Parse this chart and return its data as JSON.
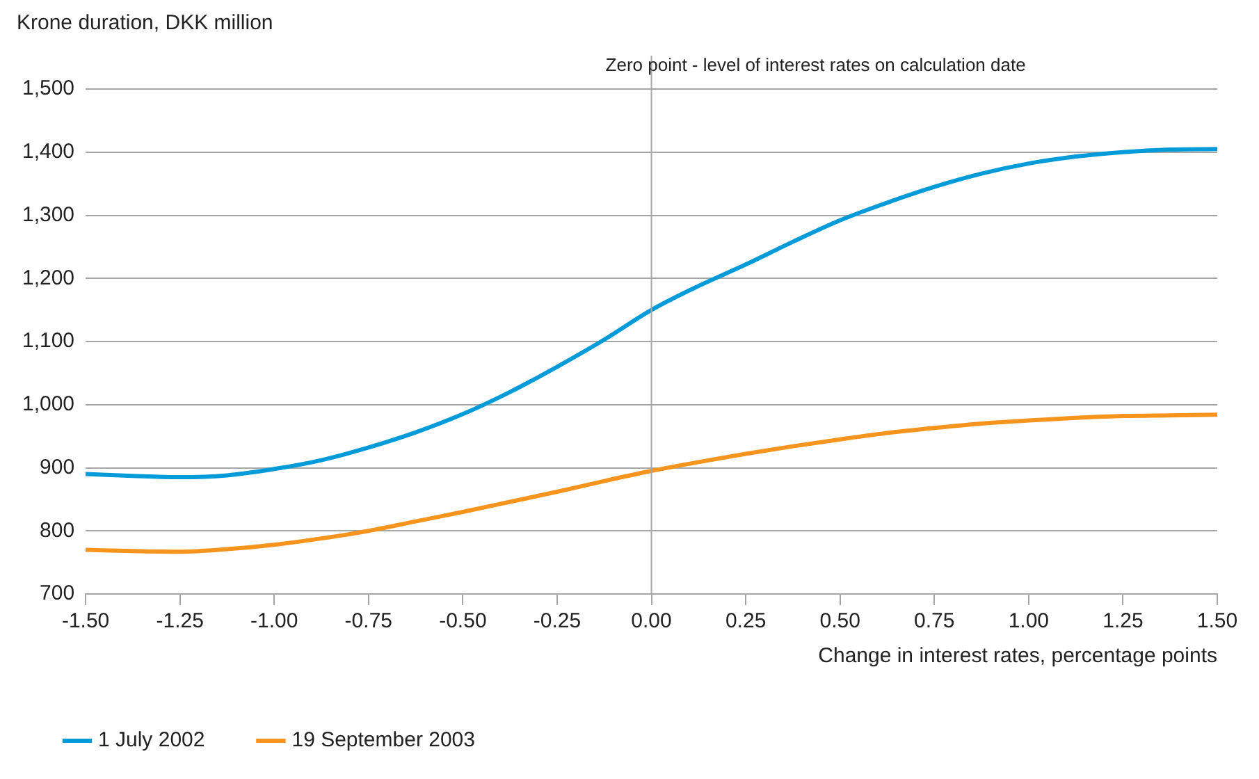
{
  "chart_data": {
    "type": "line",
    "ylabel": "Krone duration, DKK million",
    "xlabel": "Change in interest rates, percentage points",
    "x": [
      -1.5,
      -1.375,
      -1.25,
      -1.125,
      -1.0,
      -0.875,
      -0.75,
      -0.625,
      -0.5,
      -0.375,
      -0.25,
      -0.125,
      0,
      0.125,
      0.25,
      0.375,
      0.5,
      0.625,
      0.75,
      0.875,
      1.0,
      1.125,
      1.25,
      1.375,
      1.5
    ],
    "series": [
      {
        "name": "1 July 2002",
        "color": "#009bd8",
        "values": [
          890,
          887,
          885,
          888,
          898,
          912,
          932,
          956,
          985,
          1020,
          1060,
          1103,
          1150,
          1188,
          1222,
          1258,
          1292,
          1320,
          1345,
          1366,
          1382,
          1393,
          1400,
          1404,
          1405
        ]
      },
      {
        "name": "19 September 2003",
        "color": "#f7941d",
        "values": [
          770,
          768,
          767,
          771,
          778,
          788,
          800,
          815,
          830,
          846,
          862,
          879,
          895,
          909,
          922,
          934,
          945,
          955,
          963,
          970,
          975,
          979,
          982,
          983,
          984
        ]
      }
    ],
    "xlim": [
      -1.5,
      1.5
    ],
    "xticks": [
      {
        "value": -1.5,
        "label": "-1.50"
      },
      {
        "value": -1.25,
        "label": "-1.25"
      },
      {
        "value": -1,
        "label": "-1.00"
      },
      {
        "value": -0.75,
        "label": "-0.75"
      },
      {
        "value": -0.5,
        "label": "-0.50"
      },
      {
        "value": -0.25,
        "label": "-0.25"
      },
      {
        "value": 0,
        "label": "0.00"
      },
      {
        "value": 0.25,
        "label": "0.25"
      },
      {
        "value": 0.5,
        "label": "0.50"
      },
      {
        "value": 0.75,
        "label": "0.75"
      },
      {
        "value": 1,
        "label": "1.00"
      },
      {
        "value": 1.25,
        "label": "1.25"
      },
      {
        "value": 1.5,
        "label": "1.50"
      }
    ],
    "ylim": [
      700,
      1500
    ],
    "yticks": [
      700,
      800,
      900,
      {
        "value": 1000,
        "label": "1,000"
      },
      {
        "value": 1100,
        "label": "1,100"
      },
      {
        "value": 1200,
        "label": "1,200"
      },
      {
        "value": 1300,
        "label": "1,300"
      },
      {
        "value": 1400,
        "label": "1,400"
      },
      {
        "value": 1500,
        "label": "1,500"
      }
    ],
    "ref_lines": [
      {
        "axis": "x",
        "value": 0,
        "label": "Zero point - level of interest rates on calculation date",
        "color": "#a6a6a6"
      }
    ],
    "grid": "y",
    "legend": "bottom left",
    "marker": "none",
    "line_style": "solid"
  }
}
